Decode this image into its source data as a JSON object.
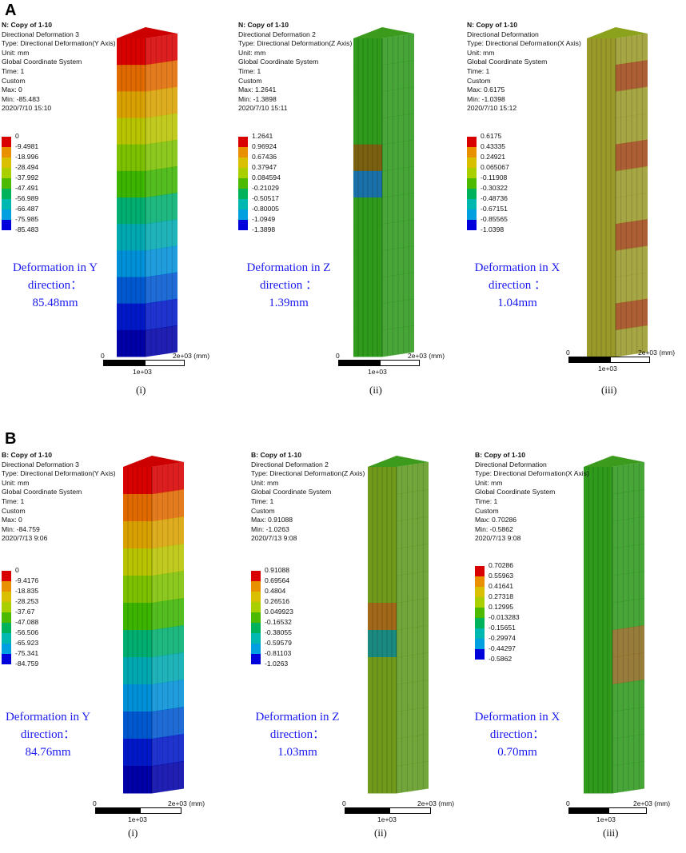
{
  "sections": [
    {
      "label": "A",
      "panels": [
        {
          "header": [
            "N: Copy of 1-10",
            "Directional Deformation 3",
            "Type: Directional Deformation(Y Axis)",
            "Unit: mm",
            "Global Coordinate System",
            "Time: 1",
            "Custom",
            "Max: 0",
            "Min: -85.483",
            "2020/7/10 15:10"
          ],
          "legend": [
            "0",
            "-9.4981",
            "-18.996",
            "-28.494",
            "-37.992",
            "-47.491",
            "-56.989",
            "-66.487",
            "-75.985",
            "-85.483"
          ],
          "caption": [
            "Deformation in Y",
            "direction：",
            "85.48mm"
          ],
          "scale": {
            "start": "0",
            "middle": "1e+03",
            "end": "2e+03 (mm)"
          },
          "roman": "(i)",
          "pattern": "gradient"
        },
        {
          "header": [
            "N: Copy of 1-10",
            "Directional Deformation 2",
            "Type: Directional Deformation(Z Axis)",
            "Unit: mm",
            "Global Coordinate System",
            "Time: 1",
            "Custom",
            "Max: 1.2641",
            "Min: -1.3898",
            "2020/7/10 15:11"
          ],
          "legend": [
            "1.2641",
            "0.96924",
            "0.67436",
            "0.37947",
            "0.084594",
            "-0.21029",
            "-0.50517",
            "-0.80005",
            "-1.0949",
            "-1.3898"
          ],
          "caption": [
            "Deformation in Z",
            "direction ：",
            "1.39mm"
          ],
          "scale": {
            "start": "0",
            "middle": "1e+03",
            "end": "2e+03 (mm)"
          },
          "roman": "(ii)",
          "pattern": "green-z"
        },
        {
          "header": [
            "N: Copy of 1-10",
            "Directional Deformation",
            "Type: Directional Deformation(X Axis)",
            "Unit: mm",
            "Global Coordinate System",
            "Time: 1",
            "Custom",
            "Max: 0.6175",
            "Min: -1.0398",
            "2020/7/10 15:12"
          ],
          "legend": [
            "0.6175",
            "0.43335",
            "0.24921",
            "0.065067",
            "-0.11908",
            "-0.30322",
            "-0.48736",
            "-0.67151",
            "-0.85565",
            "-1.0398"
          ],
          "caption": [
            "Deformation in X",
            "direction ：",
            "1.04mm"
          ],
          "scale": {
            "start": "0",
            "middle": "1e+03",
            "end": "2e+03 (mm)"
          },
          "roman": "(iii)",
          "pattern": "olive-x"
        }
      ]
    },
    {
      "label": "B",
      "panels": [
        {
          "header": [
            "B: Copy of 1-10",
            "Directional Deformation 3",
            "Type: Directional Deformation(Y Axis)",
            "Unit: mm",
            "Global Coordinate System",
            "Time: 1",
            "Custom",
            "Max: 0",
            "Min: -84.759",
            "2020/7/13 9:06"
          ],
          "legend": [
            "0",
            "-9.4176",
            "-18.835",
            "-28.253",
            "-37.67",
            "-47.088",
            "-56.506",
            "-65.923",
            "-75.341",
            "-84.759"
          ],
          "caption": [
            "Deformation in Y",
            "direction：",
            "84.76mm"
          ],
          "scale": {
            "start": "0",
            "middle": "1e+03",
            "end": "2e+03 (mm)"
          },
          "roman": "(i)",
          "pattern": "gradient"
        },
        {
          "header": [
            "B: Copy of 1-10",
            "Directional Deformation 2",
            "Type: Directional Deformation(Z Axis)",
            "Unit: mm",
            "Global Coordinate System",
            "Time: 1",
            "Custom",
            "Max: 0.91088",
            "Min: -1.0263",
            "2020/7/13 9:08"
          ],
          "legend": [
            "0.91088",
            "0.69564",
            "0.4804",
            "0.26516",
            "0.049923",
            "-0.16532",
            "-0.38055",
            "-0.59579",
            "-0.81103",
            "-1.0263"
          ],
          "caption": [
            "Deformation in Z",
            "direction：",
            "1.03mm"
          ],
          "scale": {
            "start": "0",
            "middle": "1e+03",
            "end": "2e+03 (mm)"
          },
          "roman": "(ii)",
          "pattern": "olive-z"
        },
        {
          "header": [
            "B: Copy of 1-10",
            "Directional Deformation",
            "Type: Directional Deformation(X Axis)",
            "Unit: mm",
            "Global Coordinate System",
            "Time: 1",
            "Custom",
            "Max: 0.70286",
            "Min: -0.5862",
            "2020/7/13 9:08"
          ],
          "legend": [
            "0.70286",
            "0.55963",
            "0.41641",
            "0.27318",
            "0.12995",
            "-0.013283",
            "-0.15651",
            "-0.29974",
            "-0.44297",
            "-0.5862"
          ],
          "caption": [
            "Deformation in X",
            "direction：",
            "0.70mm"
          ],
          "scale": {
            "start": "0",
            "middle": "1e+03",
            "end": "2e+03 (mm)"
          },
          "roman": "(iii)",
          "pattern": "green-x"
        }
      ]
    }
  ],
  "colors": {
    "legend": [
      "#d90000",
      "#e89000",
      "#d8c000",
      "#a9cf00",
      "#4cba00",
      "#00b35a",
      "#00b8b0",
      "#00a0e0",
      "#0000dd"
    ],
    "caption": "#1a1af0",
    "green": "#2f9a1c",
    "olive": "#9a9a2a",
    "red": "#c23010",
    "blue": "#1060c0"
  }
}
